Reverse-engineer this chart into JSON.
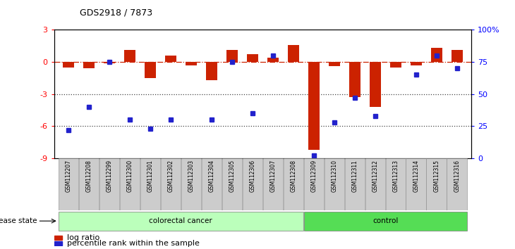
{
  "title": "GDS2918 / 7873",
  "samples": [
    "GSM112207",
    "GSM112208",
    "GSM112299",
    "GSM112300",
    "GSM112301",
    "GSM112302",
    "GSM112303",
    "GSM112304",
    "GSM112305",
    "GSM112306",
    "GSM112307",
    "GSM112308",
    "GSM112309",
    "GSM112310",
    "GSM112311",
    "GSM112312",
    "GSM112313",
    "GSM112314",
    "GSM112315",
    "GSM112316"
  ],
  "log_ratio": [
    -0.5,
    -0.6,
    -0.1,
    1.1,
    -1.5,
    0.6,
    -0.3,
    -1.7,
    1.1,
    0.7,
    0.4,
    1.6,
    -8.2,
    -0.4,
    -3.3,
    -4.2,
    -0.5,
    -0.3,
    1.3,
    1.1
  ],
  "percentile_rank": [
    22,
    40,
    75,
    30,
    23,
    30,
    null,
    30,
    75,
    35,
    80,
    null,
    2,
    28,
    47,
    33,
    null,
    65,
    80,
    70
  ],
  "colorectal_cancer_count": 12,
  "ylim_left": [
    -9,
    3
  ],
  "yticks_left": [
    -9,
    -6,
    -3,
    0,
    3
  ],
  "yticks_right": [
    0,
    25,
    50,
    75,
    100
  ],
  "ytick_labels_right": [
    "0",
    "25",
    "50",
    "75",
    "100%"
  ],
  "bar_color": "#CC2200",
  "dot_color": "#2222CC",
  "hline_color": "#CC2200",
  "dotline_color": "#444444",
  "colorectal_color": "#BBFFBB",
  "control_color": "#55DD55",
  "xticklabel_bg": "#CCCCCC",
  "bar_width": 0.55
}
